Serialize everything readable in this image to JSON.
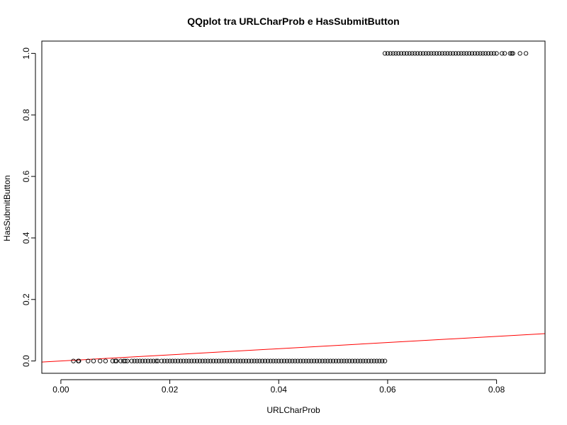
{
  "chart_data": {
    "type": "scatter",
    "title": "QQplot tra URLCharProb e HasSubmitButton",
    "xlabel": "URLCharProb",
    "ylabel": "HasSubmitButton",
    "xlim": [
      -0.0035,
      0.0889
    ],
    "ylim": [
      -0.04,
      1.04
    ],
    "x_ticks": [
      0.0,
      0.02,
      0.04,
      0.06,
      0.08
    ],
    "x_tick_labels": [
      "0.00",
      "0.02",
      "0.04",
      "0.06",
      "0.08"
    ],
    "y_ticks": [
      0.0,
      0.2,
      0.4,
      0.6,
      0.8,
      1.0
    ],
    "y_tick_labels": [
      "0.0",
      "0.2",
      "0.4",
      "0.6",
      "0.8",
      "1.0"
    ],
    "grid": false,
    "series": [
      {
        "marker": "open-circle",
        "color": "#000000",
        "points": [
          [
            0.0023,
            0
          ],
          [
            0.0032,
            0
          ],
          [
            0.0033,
            0
          ],
          [
            0.005,
            0
          ],
          [
            0.006,
            0
          ],
          [
            0.0072,
            0
          ],
          [
            0.0082,
            0
          ],
          [
            0.0095,
            0
          ],
          [
            0.01,
            0
          ],
          [
            0.0102,
            0
          ],
          [
            0.011,
            0
          ],
          [
            0.0115,
            0
          ],
          [
            0.0118,
            0
          ],
          [
            0.0122,
            0
          ],
          [
            0.013,
            0
          ],
          [
            0.0135,
            0
          ],
          [
            0.014,
            0
          ],
          [
            0.0145,
            0
          ],
          [
            0.015,
            0
          ],
          [
            0.0155,
            0
          ],
          [
            0.016,
            0
          ],
          [
            0.0165,
            0
          ],
          [
            0.017,
            0
          ],
          [
            0.0175,
            0
          ],
          [
            0.0178,
            0
          ],
          [
            0.0185,
            0
          ],
          [
            0.019,
            0
          ],
          [
            0.0195,
            0
          ],
          [
            0.02,
            0
          ],
          [
            0.0205,
            0
          ],
          [
            0.021,
            0
          ],
          [
            0.0215,
            0
          ],
          [
            0.022,
            0
          ],
          [
            0.0225,
            0
          ],
          [
            0.023,
            0
          ],
          [
            0.0235,
            0
          ],
          [
            0.024,
            0
          ],
          [
            0.0245,
            0
          ],
          [
            0.025,
            0
          ],
          [
            0.0255,
            0
          ],
          [
            0.026,
            0
          ],
          [
            0.0265,
            0
          ],
          [
            0.027,
            0
          ],
          [
            0.0275,
            0
          ],
          [
            0.028,
            0
          ],
          [
            0.0285,
            0
          ],
          [
            0.029,
            0
          ],
          [
            0.0295,
            0
          ],
          [
            0.03,
            0
          ],
          [
            0.0305,
            0
          ],
          [
            0.031,
            0
          ],
          [
            0.0315,
            0
          ],
          [
            0.032,
            0
          ],
          [
            0.0325,
            0
          ],
          [
            0.033,
            0
          ],
          [
            0.0335,
            0
          ],
          [
            0.034,
            0
          ],
          [
            0.0345,
            0
          ],
          [
            0.035,
            0
          ],
          [
            0.0355,
            0
          ],
          [
            0.036,
            0
          ],
          [
            0.0365,
            0
          ],
          [
            0.037,
            0
          ],
          [
            0.0375,
            0
          ],
          [
            0.038,
            0
          ],
          [
            0.0385,
            0
          ],
          [
            0.039,
            0
          ],
          [
            0.0395,
            0
          ],
          [
            0.04,
            0
          ],
          [
            0.0405,
            0
          ],
          [
            0.041,
            0
          ],
          [
            0.0415,
            0
          ],
          [
            0.042,
            0
          ],
          [
            0.0425,
            0
          ],
          [
            0.043,
            0
          ],
          [
            0.0435,
            0
          ],
          [
            0.044,
            0
          ],
          [
            0.0445,
            0
          ],
          [
            0.045,
            0
          ],
          [
            0.0455,
            0
          ],
          [
            0.046,
            0
          ],
          [
            0.0465,
            0
          ],
          [
            0.047,
            0
          ],
          [
            0.0475,
            0
          ],
          [
            0.048,
            0
          ],
          [
            0.0485,
            0
          ],
          [
            0.049,
            0
          ],
          [
            0.0495,
            0
          ],
          [
            0.05,
            0
          ],
          [
            0.0505,
            0
          ],
          [
            0.051,
            0
          ],
          [
            0.0515,
            0
          ],
          [
            0.052,
            0
          ],
          [
            0.0525,
            0
          ],
          [
            0.053,
            0
          ],
          [
            0.0535,
            0
          ],
          [
            0.054,
            0
          ],
          [
            0.0545,
            0
          ],
          [
            0.055,
            0
          ],
          [
            0.0555,
            0
          ],
          [
            0.056,
            0
          ],
          [
            0.0565,
            0
          ],
          [
            0.057,
            0
          ],
          [
            0.0575,
            0
          ],
          [
            0.058,
            0
          ],
          [
            0.0585,
            0
          ],
          [
            0.059,
            0
          ],
          [
            0.0595,
            0
          ],
          [
            0.0595,
            1
          ],
          [
            0.06,
            1
          ],
          [
            0.0605,
            1
          ],
          [
            0.061,
            1
          ],
          [
            0.0615,
            1
          ],
          [
            0.062,
            1
          ],
          [
            0.0625,
            1
          ],
          [
            0.063,
            1
          ],
          [
            0.0635,
            1
          ],
          [
            0.064,
            1
          ],
          [
            0.0645,
            1
          ],
          [
            0.065,
            1
          ],
          [
            0.0655,
            1
          ],
          [
            0.066,
            1
          ],
          [
            0.0665,
            1
          ],
          [
            0.067,
            1
          ],
          [
            0.0675,
            1
          ],
          [
            0.068,
            1
          ],
          [
            0.0685,
            1
          ],
          [
            0.069,
            1
          ],
          [
            0.0695,
            1
          ],
          [
            0.07,
            1
          ],
          [
            0.0705,
            1
          ],
          [
            0.071,
            1
          ],
          [
            0.0715,
            1
          ],
          [
            0.072,
            1
          ],
          [
            0.0725,
            1
          ],
          [
            0.073,
            1
          ],
          [
            0.0735,
            1
          ],
          [
            0.074,
            1
          ],
          [
            0.0745,
            1
          ],
          [
            0.075,
            1
          ],
          [
            0.0755,
            1
          ],
          [
            0.076,
            1
          ],
          [
            0.0765,
            1
          ],
          [
            0.077,
            1
          ],
          [
            0.0775,
            1
          ],
          [
            0.078,
            1
          ],
          [
            0.0785,
            1
          ],
          [
            0.079,
            1
          ],
          [
            0.0795,
            1
          ],
          [
            0.08,
            1
          ],
          [
            0.081,
            1
          ],
          [
            0.0815,
            1
          ],
          [
            0.0825,
            1
          ],
          [
            0.0828,
            1
          ],
          [
            0.083,
            1
          ],
          [
            0.0843,
            1
          ],
          [
            0.0854,
            1
          ]
        ]
      }
    ],
    "reference_line": {
      "color": "#ff0000",
      "slope": 1,
      "intercept": 0
    }
  }
}
